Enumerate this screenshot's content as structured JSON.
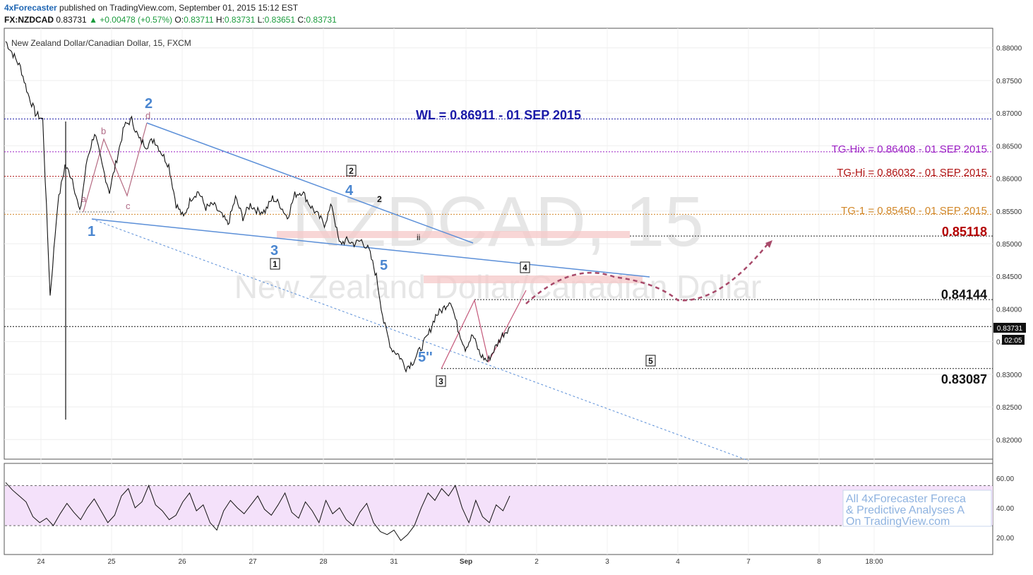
{
  "header": {
    "brand": "4xForecaster",
    "published": " published on TradingView.com, September 01, 2015 15:12 EST"
  },
  "ohlc": {
    "symbol": "FX:NZDCAD",
    "last": "0.83731",
    "change": "▲ +0.00478 (+0.57%)",
    "o_label": "O:",
    "o": "0.83711",
    "h_label": "H:",
    "h": "0.83731",
    "l_label": "L:",
    "l": "0.83651",
    "c_label": "C:",
    "c": "0.83731"
  },
  "chart_data": {
    "type": "line",
    "title": "New Zealand Dollar/Canadian Dollar, 15, FXCM",
    "watermark_symbol": "NZDCAD, 15",
    "watermark_name": "New Zealand Dollar/Canadian Dollar",
    "ylim": [
      0.817,
      0.883
    ],
    "y_ticks": [
      "0.88000",
      "0.87500",
      "0.87000",
      "0.86500",
      "0.86000",
      "0.85500",
      "0.85000",
      "0.84500",
      "0.84000",
      "0.83500",
      "0.83000",
      "0.82500",
      "0.82000"
    ],
    "x_ticks": [
      "24",
      "25",
      "26",
      "27",
      "28",
      "31",
      "Sep",
      "2",
      "3",
      "4",
      "7",
      "8",
      "18:00"
    ],
    "price_label": "0.83731",
    "countdown_label": "02:05",
    "series": [
      {
        "values": [
          0.881,
          0.879,
          0.877,
          0.873,
          0.87,
          0.869,
          0.842,
          0.856,
          0.862,
          0.86,
          0.8547,
          0.863,
          0.867,
          0.862,
          0.858,
          0.863,
          0.868,
          0.869,
          0.866,
          0.865,
          0.866,
          0.864,
          0.862,
          0.856,
          0.854,
          0.857,
          0.858,
          0.8555,
          0.856,
          0.8545,
          0.853,
          0.857,
          0.854,
          0.856,
          0.855,
          0.855,
          0.857,
          0.856,
          0.854,
          0.8575,
          0.858,
          0.856,
          0.8545,
          0.853,
          0.856,
          0.85,
          0.8505,
          0.85,
          0.8505,
          0.849,
          0.845,
          0.838,
          0.834,
          0.833,
          0.831,
          0.832,
          0.834,
          0.836,
          0.839,
          0.84,
          0.8414,
          0.837,
          0.834,
          0.836,
          0.833,
          0.832,
          0.834,
          0.836,
          0.8373
        ]
      }
    ],
    "rsi": {
      "ylim": [
        10,
        68
      ],
      "y_ticks": [
        "60.00",
        "40.00",
        "20.00"
      ],
      "upper": 55,
      "lower": 28,
      "values": [
        57,
        52,
        48,
        44,
        34,
        30,
        33,
        28,
        36,
        43,
        37,
        32,
        40,
        46,
        38,
        30,
        35,
        48,
        53,
        40,
        44,
        55,
        42,
        38,
        32,
        35,
        44,
        50,
        38,
        42,
        30,
        25,
        38,
        45,
        40,
        36,
        42,
        48,
        39,
        35,
        42,
        50,
        37,
        33,
        44,
        38,
        30,
        45,
        36,
        40,
        32,
        28,
        37,
        43,
        30,
        24,
        22,
        25,
        18,
        22,
        28,
        40,
        50,
        45,
        53,
        48,
        55,
        40,
        30,
        45,
        34,
        30,
        42,
        38,
        48
      ]
    }
  },
  "levels": {
    "wl": "WL = 0.86911 - 01 SEP 2015",
    "tg_hix": "TG-Hix = 0.86408 - 01 SEP 2015",
    "tg_hi": "TG-Hi = 0.86032 - 01 SEP 2015",
    "tg_1": "TG-1 = 0.85450 - 01 SEP 2015",
    "l85118": "0.85118",
    "l84144": "0.84144",
    "l83087": "0.83087",
    "colors": {
      "wl": "#1a1aa8",
      "tg_hix": "#9b1fc4",
      "tg_hi": "#b01515",
      "tg_1": "#d2882a",
      "l85118": "#b30000"
    }
  },
  "waves": {
    "w1": "1",
    "w2": "2",
    "w3": "3",
    "w4": "4",
    "w5": "5",
    "w5pp": "5''",
    "a": "a",
    "b": "b",
    "c": "c",
    "d": "d",
    "ii": "ii",
    "two": "2",
    "box1": "1",
    "box2": "2",
    "box3": "3",
    "box4": "4",
    "box5": "5"
  },
  "promo": {
    "line1": "All 4xForecaster Foreca",
    "line2": "& Predictive Analyses A",
    "line3": "On TradingView.com"
  }
}
